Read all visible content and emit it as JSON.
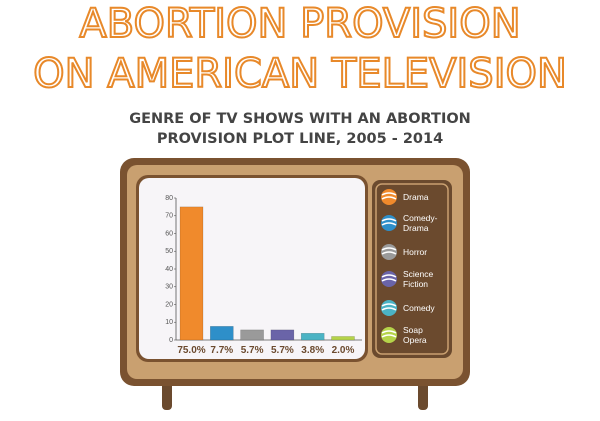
{
  "chart_data": {
    "type": "bar",
    "title": [
      "ABORTION PROVISION",
      "ON AMERICAN TELEVISION"
    ],
    "subtitle": [
      "GENRE OF TV SHOWS WITH AN ABORTION",
      "PROVISION PLOT LINE, 2005 - 2014"
    ],
    "categories": [
      "Drama",
      "Comedy-Drama",
      "Horror",
      "Science Fiction",
      "Comedy",
      "Soap Opera"
    ],
    "values": [
      75.0,
      7.7,
      5.7,
      5.7,
      3.8,
      2.0
    ],
    "value_labels": [
      "75.0%",
      "7.7%",
      "5.7%",
      "5.7%",
      "3.8%",
      "2.0%"
    ],
    "colors": [
      "#f08a2c",
      "#2e8fc9",
      "#9a9a9a",
      "#6a64a8",
      "#4bb3c4",
      "#b5d34a"
    ],
    "ylim": [
      0,
      80
    ],
    "yticks": [
      0,
      10,
      20,
      30,
      40,
      50,
      60,
      70,
      80
    ]
  }
}
